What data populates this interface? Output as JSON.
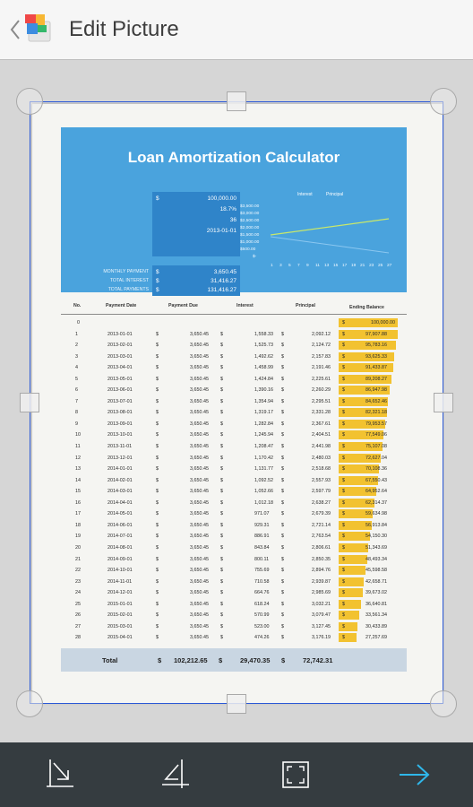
{
  "app": {
    "title": "Edit Picture"
  },
  "icons": {
    "back": "chevron-left-icon",
    "logo": "scanner-app-logo-icon",
    "rotate": "rotate-perspective-icon",
    "skew": "skew-crop-icon",
    "full_crop": "expand-crop-icon",
    "next": "arrow-right-icon"
  },
  "colors": {
    "accent": "#2a58d6",
    "arrow": "#2fb7ea",
    "bar": "#353c40",
    "header_blue": "#4aa3dd"
  },
  "document": {
    "title": "Loan Amortization Calculator",
    "inputs": [
      {
        "label": "",
        "dollar": "$",
        "value": "100,000.00"
      },
      {
        "label": "",
        "dollar": "",
        "value": "18.7%"
      },
      {
        "label": "",
        "dollar": "",
        "value": "36"
      },
      {
        "label": "",
        "dollar": "",
        "value": "2013-01-01"
      }
    ],
    "results": [
      {
        "label": "MONTHLY PAYMENT",
        "dollar": "$",
        "value": "3,650.45"
      },
      {
        "label": "TOTAL INTEREST",
        "dollar": "$",
        "value": "31,416.27"
      },
      {
        "label": "TOTAL PAYMENTS",
        "dollar": "$",
        "value": "131,416.27"
      }
    ],
    "graph": {
      "legend_interest": "Interest",
      "legend_principal": "Principal",
      "y_ticks": [
        "$3,500.00",
        "$3,000.00",
        "$2,500.00",
        "$2,000.00",
        "$1,500.00",
        "$1,000.00",
        "$500.00",
        "$-"
      ],
      "x_ticks": [
        "1",
        "3",
        "5",
        "7",
        "9",
        "11",
        "13",
        "15",
        "17",
        "19",
        "21",
        "23",
        "25",
        "27"
      ]
    },
    "columns": [
      "No.",
      "Payment Date",
      "Payment Due",
      "Interest",
      "Principal",
      "Ending Balance"
    ],
    "opening_balance": {
      "no": "0",
      "dollar": "$",
      "balance": "100,000.00"
    },
    "rows": [
      {
        "no": "1",
        "date": "2013-01-01",
        "due": "3,650.45",
        "interest": "1,558.33",
        "principal": "2,092.12",
        "balance": "97,907.88"
      },
      {
        "no": "2",
        "date": "2013-02-01",
        "due": "3,650.45",
        "interest": "1,525.73",
        "principal": "2,124.72",
        "balance": "95,783.16"
      },
      {
        "no": "3",
        "date": "2013-03-01",
        "due": "3,650.45",
        "interest": "1,492.62",
        "principal": "2,157.83",
        "balance": "93,625.33"
      },
      {
        "no": "4",
        "date": "2013-04-01",
        "due": "3,650.45",
        "interest": "1,458.99",
        "principal": "2,191.46",
        "balance": "91,433.87"
      },
      {
        "no": "5",
        "date": "2013-05-01",
        "due": "3,650.45",
        "interest": "1,424.84",
        "principal": "2,225.61",
        "balance": "89,208.27"
      },
      {
        "no": "6",
        "date": "2013-06-01",
        "due": "3,650.45",
        "interest": "1,390.16",
        "principal": "2,260.29",
        "balance": "86,947.98"
      },
      {
        "no": "7",
        "date": "2013-07-01",
        "due": "3,650.45",
        "interest": "1,354.94",
        "principal": "2,295.51",
        "balance": "84,652.46"
      },
      {
        "no": "8",
        "date": "2013-08-01",
        "due": "3,650.45",
        "interest": "1,319.17",
        "principal": "2,331.28",
        "balance": "82,321.18"
      },
      {
        "no": "9",
        "date": "2013-09-01",
        "due": "3,650.45",
        "interest": "1,282.84",
        "principal": "2,367.61",
        "balance": "79,953.57"
      },
      {
        "no": "10",
        "date": "2013-10-01",
        "due": "3,650.45",
        "interest": "1,245.94",
        "principal": "2,404.51",
        "balance": "77,549.06"
      },
      {
        "no": "11",
        "date": "2013-11-01",
        "due": "3,650.45",
        "interest": "1,208.47",
        "principal": "2,441.98",
        "balance": "75,107.08"
      },
      {
        "no": "12",
        "date": "2013-12-01",
        "due": "3,650.45",
        "interest": "1,170.42",
        "principal": "2,480.03",
        "balance": "72,627.04"
      },
      {
        "no": "13",
        "date": "2014-01-01",
        "due": "3,650.45",
        "interest": "1,131.77",
        "principal": "2,518.68",
        "balance": "70,108.36"
      },
      {
        "no": "14",
        "date": "2014-02-01",
        "due": "3,650.45",
        "interest": "1,092.52",
        "principal": "2,557.93",
        "balance": "67,550.43"
      },
      {
        "no": "15",
        "date": "2014-03-01",
        "due": "3,650.45",
        "interest": "1,052.66",
        "principal": "2,597.79",
        "balance": "64,952.64"
      },
      {
        "no": "16",
        "date": "2014-04-01",
        "due": "3,650.45",
        "interest": "1,012.18",
        "principal": "2,638.27",
        "balance": "62,314.37"
      },
      {
        "no": "17",
        "date": "2014-05-01",
        "due": "3,650.45",
        "interest": "971.07",
        "principal": "2,679.39",
        "balance": "59,634.98"
      },
      {
        "no": "18",
        "date": "2014-06-01",
        "due": "3,650.45",
        "interest": "929.31",
        "principal": "2,721.14",
        "balance": "56,913.84"
      },
      {
        "no": "19",
        "date": "2014-07-01",
        "due": "3,650.45",
        "interest": "886.91",
        "principal": "2,763.54",
        "balance": "54,150.30"
      },
      {
        "no": "20",
        "date": "2014-08-01",
        "due": "3,650.45",
        "interest": "843.84",
        "principal": "2,806.61",
        "balance": "51,343.69"
      },
      {
        "no": "21",
        "date": "2014-09-01",
        "due": "3,650.45",
        "interest": "800.11",
        "principal": "2,850.35",
        "balance": "48,493.34"
      },
      {
        "no": "22",
        "date": "2014-10-01",
        "due": "3,650.45",
        "interest": "755.69",
        "principal": "2,894.76",
        "balance": "45,598.58"
      },
      {
        "no": "23",
        "date": "2014-11-01",
        "due": "3,650.45",
        "interest": "710.58",
        "principal": "2,939.87",
        "balance": "42,658.71"
      },
      {
        "no": "24",
        "date": "2014-12-01",
        "due": "3,650.45",
        "interest": "664.76",
        "principal": "2,985.69",
        "balance": "39,673.02"
      },
      {
        "no": "25",
        "date": "2015-01-01",
        "due": "3,650.45",
        "interest": "618.24",
        "principal": "3,032.21",
        "balance": "36,640.81"
      },
      {
        "no": "26",
        "date": "2015-02-01",
        "due": "3,650.45",
        "interest": "570.99",
        "principal": "3,079.47",
        "balance": "33,561.34"
      },
      {
        "no": "27",
        "date": "2015-03-01",
        "due": "3,650.45",
        "interest": "523.00",
        "principal": "3,127.45",
        "balance": "30,433.89"
      },
      {
        "no": "28",
        "date": "2015-04-01",
        "due": "3,650.45",
        "interest": "474.26",
        "principal": "3,176.19",
        "balance": "27,257.69"
      }
    ],
    "total": {
      "label": "Total",
      "dollar": "$",
      "due": "102,212.65",
      "interest": "29,470.35",
      "principal": "72,742.31"
    }
  }
}
